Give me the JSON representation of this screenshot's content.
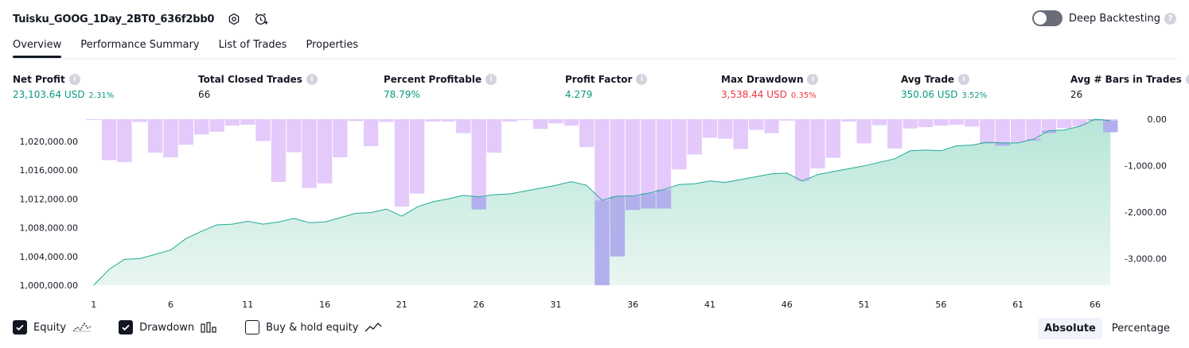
{
  "header": {
    "title": "Tuisku_GOOG_1Day_2BT0_636f2bb0",
    "icons": [
      "settings-icon",
      "add-alert-icon"
    ]
  },
  "deep_backtesting": {
    "label": "Deep Backtesting",
    "enabled": false,
    "help": "?"
  },
  "tabs": [
    "Overview",
    "Performance Summary",
    "List of Trades",
    "Properties"
  ],
  "active_tab": "Overview",
  "metrics": [
    {
      "label": "Net Profit",
      "value": "23,103.64 USD",
      "pct": "2.31%",
      "tone": "green"
    },
    {
      "label": "Total Closed Trades",
      "value": "66",
      "pct": "",
      "tone": "plain"
    },
    {
      "label": "Percent Profitable",
      "value": "78.79%",
      "pct": "",
      "tone": "green"
    },
    {
      "label": "Profit Factor",
      "value": "4.279",
      "pct": "",
      "tone": "green"
    },
    {
      "label": "Max Drawdown",
      "value": "3,538.44 USD",
      "pct": "0.35%",
      "tone": "red"
    },
    {
      "label": "Avg Trade",
      "value": "350.06 USD",
      "pct": "3.52%",
      "tone": "green"
    },
    {
      "label": "Avg # Bars in Trades",
      "value": "26",
      "pct": "",
      "tone": "plain"
    }
  ],
  "info_glyph": "i",
  "colors": {
    "equity_line": "#22ab94",
    "equity_fill_top": "#b7e6d8",
    "equity_fill_bottom": "#e9f6f1",
    "drawdown_bar": "#e1c4fb",
    "drawdown_overlap": "#b2b0ec",
    "axis_text": "#131722",
    "positive": "#089981",
    "negative": "#f23645"
  },
  "chart_data": {
    "type": "bar+area",
    "x": [
      1,
      2,
      3,
      4,
      5,
      6,
      7,
      8,
      9,
      10,
      11,
      12,
      13,
      14,
      15,
      16,
      17,
      18,
      19,
      20,
      21,
      22,
      23,
      24,
      25,
      26,
      27,
      28,
      29,
      30,
      31,
      32,
      33,
      34,
      35,
      36,
      37,
      38,
      39,
      40,
      41,
      42,
      43,
      44,
      45,
      46,
      47,
      48,
      49,
      50,
      51,
      52,
      53,
      54,
      55,
      56,
      57,
      58,
      59,
      60,
      61,
      62,
      63,
      64,
      65,
      66,
      67
    ],
    "x_ticks": [
      "1",
      "6",
      "11",
      "16",
      "21",
      "26",
      "31",
      "36",
      "41",
      "46",
      "51",
      "56",
      "61",
      "66"
    ],
    "series": [
      {
        "name": "Equity",
        "kind": "area",
        "axis": "left",
        "values": [
          1000000,
          1002200,
          1003600,
          1003700,
          1004300,
          1004900,
          1006500,
          1007500,
          1008400,
          1008500,
          1008900,
          1008500,
          1008800,
          1009300,
          1008700,
          1008800,
          1009400,
          1010000,
          1010100,
          1010600,
          1009600,
          1010900,
          1011600,
          1012000,
          1012500,
          1012300,
          1012600,
          1012700,
          1013100,
          1013500,
          1013900,
          1014400,
          1013900,
          1011800,
          1012400,
          1012400,
          1012800,
          1013300,
          1014000,
          1014100,
          1014500,
          1014300,
          1014700,
          1015100,
          1015500,
          1015600,
          1014500,
          1015400,
          1015800,
          1016200,
          1016600,
          1017100,
          1017600,
          1018700,
          1018800,
          1018700,
          1019400,
          1019500,
          1019900,
          1019800,
          1019800,
          1020300,
          1021500,
          1021600,
          1022100,
          1023100,
          1022900
        ]
      },
      {
        "name": "Drawdown",
        "kind": "bar",
        "axis": "right",
        "values": [
          0,
          -880,
          -920,
          -60,
          -720,
          -820,
          -550,
          -330,
          -270,
          -140,
          -120,
          -470,
          -1350,
          -710,
          -1480,
          -1380,
          -820,
          -40,
          -580,
          -60,
          -1880,
          -1600,
          -50,
          -50,
          -300,
          -1940,
          -720,
          -50,
          -20,
          -210,
          -90,
          -140,
          -600,
          -3570,
          -2950,
          -1950,
          -1920,
          -1920,
          -1080,
          -760,
          -400,
          -420,
          -640,
          -230,
          -300,
          -30,
          -1330,
          -1060,
          -830,
          -50,
          -520,
          -130,
          -630,
          -200,
          -170,
          -140,
          -120,
          -160,
          -520,
          -570,
          -510,
          -460,
          -300,
          -190,
          -150,
          -30,
          -280
        ]
      }
    ],
    "y_left": {
      "ticks": [
        "1,000,000.00",
        "1,004,000.00",
        "1,008,000.00",
        "1,012,000.00",
        "1,016,000.00",
        "1,020,000.00"
      ],
      "ylim": [
        1000000,
        1023100
      ]
    },
    "y_right": {
      "ticks": [
        "0.00",
        "-1,000.00",
        "-2,000.00",
        "-3,000.00"
      ],
      "ylim": [
        -3570,
        0
      ]
    },
    "grid": false
  },
  "legend": [
    {
      "label": "Equity",
      "checked": true,
      "icon": "equity-line-icon"
    },
    {
      "label": "Drawdown",
      "checked": true,
      "icon": "drawdown-bars-icon"
    },
    {
      "label": "Buy & hold equity",
      "checked": false,
      "icon": "buy-hold-line-icon"
    }
  ],
  "mode_switch": {
    "options": [
      "Absolute",
      "Percentage"
    ],
    "active": "Absolute"
  }
}
